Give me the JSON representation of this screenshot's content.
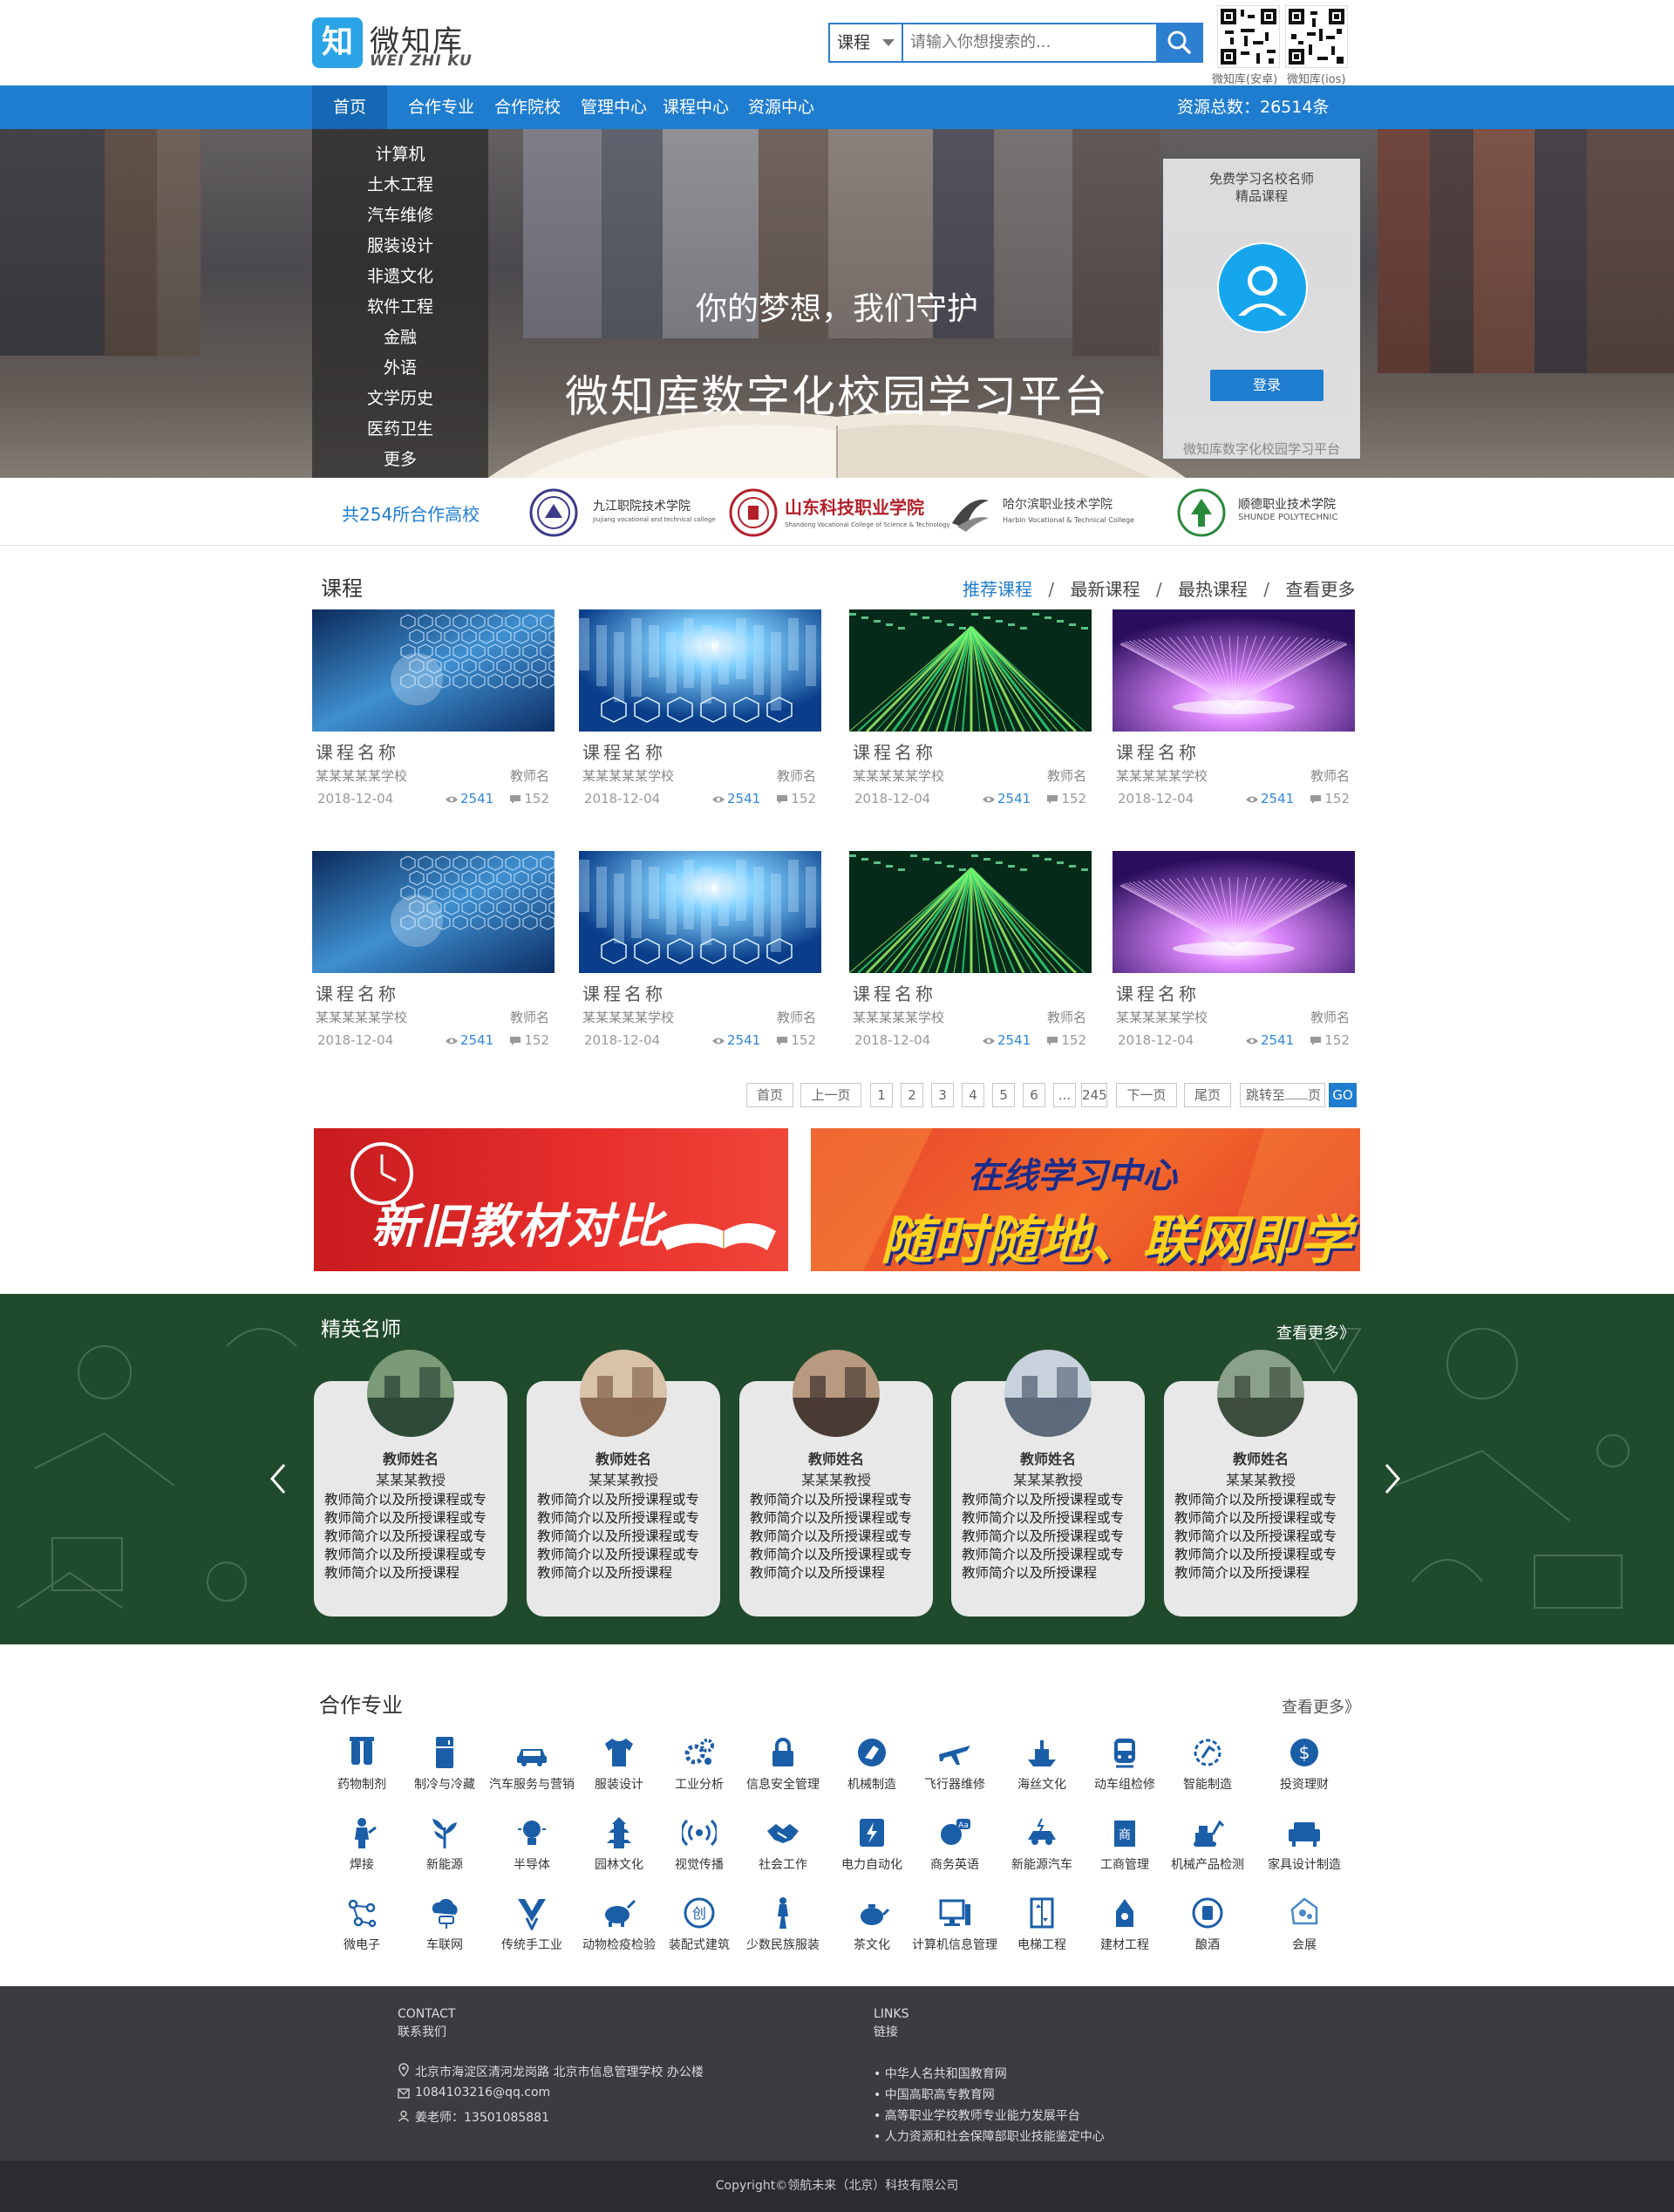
{
  "header": {
    "logo_glyph": "知",
    "logo_cn": "微知库",
    "logo_en": "WEI ZHI KU",
    "search_category": "课程",
    "search_placeholder": "请输入你想搜索的...",
    "qr_android_label": "微知库(安卓)",
    "qr_ios_label": "微知库(ios)"
  },
  "nav": {
    "items": [
      "首页",
      "合作专业",
      "合作院校",
      "管理中心",
      "课程中心",
      "资源中心"
    ],
    "resource_total": "资源总数：26514条"
  },
  "banner": {
    "categories": [
      "计算机",
      "土木工程",
      "汽车维修",
      "服装设计",
      "非遗文化",
      "软件工程",
      "金融",
      "外语",
      "文学历史",
      "医药卫生",
      "更多"
    ],
    "slogan_small": "你的梦想，我们守护",
    "slogan_big": "微知库数字化校园学习平台",
    "login_card": {
      "title_line1": "免费学习名校名师",
      "title_line2": "精品课程",
      "login_button": "登录",
      "footer": "微知库数字化校园学习平台"
    }
  },
  "partners": {
    "count_text": "共254所合作高校",
    "schools": [
      {
        "name": "九江职院技术学院",
        "en": "Jiujiang vocational and technical college"
      },
      {
        "name": "山东科技职业学院",
        "en": "Shandong Vocational College of Science & Technology"
      },
      {
        "name": "哈尔滨职业技术学院",
        "en": "Harbin Vocational & Technical College"
      },
      {
        "name": "顺德职业技术学院",
        "en": "SHUNDE POLYTECHNIC"
      }
    ]
  },
  "courses": {
    "title": "课程",
    "tabs": [
      "推荐课程",
      "最新课程",
      "最热课程",
      "查看更多"
    ],
    "separator": "/",
    "items": [
      {
        "name": "课程名称",
        "school": "某某某某某学校",
        "teacher": "教师名",
        "date": "2018-12-04",
        "views": "2541",
        "comments": "152",
        "img": "hex-blue"
      },
      {
        "name": "课程名称",
        "school": "某某某某某学校",
        "teacher": "教师名",
        "date": "2018-12-04",
        "views": "2541",
        "comments": "152",
        "img": "light-blue"
      },
      {
        "name": "课程名称",
        "school": "某某某某某学校",
        "teacher": "教师名",
        "date": "2018-12-04",
        "views": "2541",
        "comments": "152",
        "img": "green-tech"
      },
      {
        "name": "课程名称",
        "school": "某某某某某学校",
        "teacher": "教师名",
        "date": "2018-12-04",
        "views": "2541",
        "comments": "152",
        "img": "purple-rays"
      },
      {
        "name": "课程名称",
        "school": "某某某某某学校",
        "teacher": "教师名",
        "date": "2018-12-04",
        "views": "2541",
        "comments": "152",
        "img": "hex-blue"
      },
      {
        "name": "课程名称",
        "school": "某某某某某学校",
        "teacher": "教师名",
        "date": "2018-12-04",
        "views": "2541",
        "comments": "152",
        "img": "light-blue"
      },
      {
        "name": "课程名称",
        "school": "某某某某某学校",
        "teacher": "教师名",
        "date": "2018-12-04",
        "views": "2541",
        "comments": "152",
        "img": "green-tech"
      },
      {
        "name": "课程名称",
        "school": "某某某某某学校",
        "teacher": "教师名",
        "date": "2018-12-04",
        "views": "2541",
        "comments": "152",
        "img": "purple-rays"
      }
    ]
  },
  "pagination": {
    "first": "首页",
    "prev": "上一页",
    "pages": [
      "1",
      "2",
      "3",
      "4",
      "5",
      "6",
      "...",
      "245"
    ],
    "next": "下一页",
    "last": "尾页",
    "jump_prefix": "跳转至",
    "jump_suffix": "页",
    "go": "GO"
  },
  "promos": {
    "left": "新旧教材对比",
    "right_top": "在线学习中心",
    "right_bottom": "随时随地、联网即学"
  },
  "teachers": {
    "title": "精英名师",
    "more": "查看更多》",
    "items": [
      {
        "name": "教师姓名",
        "title": "某某某教授",
        "desc": "教师简介以及所授课程或专教师简介以及所授课程或专教师简介以及所授课程或专教师简介以及所授课程或专教师简介以及所授课程"
      },
      {
        "name": "教师姓名",
        "title": "某某某教授",
        "desc": "教师简介以及所授课程或专教师简介以及所授课程或专教师简介以及所授课程或专教师简介以及所授课程或专教师简介以及所授课程"
      },
      {
        "name": "教师姓名",
        "title": "某某某教授",
        "desc": "教师简介以及所授课程或专教师简介以及所授课程或专教师简介以及所授课程或专教师简介以及所授课程或专教师简介以及所授课程"
      },
      {
        "name": "教师姓名",
        "title": "某某某教授",
        "desc": "教师简介以及所授课程或专教师简介以及所授课程或专教师简介以及所授课程或专教师简介以及所授课程或专教师简介以及所授课程"
      },
      {
        "name": "教师姓名",
        "title": "某某某教授",
        "desc": "教师简介以及所授课程或专教师简介以及所授课程或专教师简介以及所授课程或专教师简介以及所授课程或专教师简介以及所授课程"
      }
    ]
  },
  "majors": {
    "title": "合作专业",
    "more": "查看更多》",
    "items": [
      {
        "label": "药物制剂",
        "icon": "pharmacy-icon"
      },
      {
        "label": "制冷与冷藏",
        "icon": "fridge-icon"
      },
      {
        "label": "汽车服务与营销",
        "icon": "car-icon"
      },
      {
        "label": "服装设计",
        "icon": "shirt-icon"
      },
      {
        "label": "工业分析",
        "icon": "gears-icon"
      },
      {
        "label": "信息安全管理",
        "icon": "lock-icon"
      },
      {
        "label": "机械制造",
        "icon": "machine-icon"
      },
      {
        "label": "飞行器维修",
        "icon": "plane-icon"
      },
      {
        "label": "海丝文化",
        "icon": "ship-icon"
      },
      {
        "label": "动车组检修",
        "icon": "train-icon"
      },
      {
        "label": "智能制造",
        "icon": "robot-arm-icon"
      },
      {
        "label": "投资理财",
        "icon": "dollar-icon"
      },
      {
        "label": "焊接",
        "icon": "welder-icon"
      },
      {
        "label": "新能源",
        "icon": "leaf-icon"
      },
      {
        "label": "半导体",
        "icon": "bulb-icon"
      },
      {
        "label": "园林文化",
        "icon": "pagoda-icon"
      },
      {
        "label": "视觉传播",
        "icon": "broadcast-icon"
      },
      {
        "label": "社会工作",
        "icon": "handshake-icon"
      },
      {
        "label": "电力自动化",
        "icon": "power-icon"
      },
      {
        "label": "商务英语",
        "icon": "english-icon"
      },
      {
        "label": "新能源汽车",
        "icon": "ev-car-icon"
      },
      {
        "label": "工商管理",
        "icon": "business-icon"
      },
      {
        "label": "机械产品检测",
        "icon": "excavator-icon"
      },
      {
        "label": "家具设计制造",
        "icon": "sofa-icon"
      },
      {
        "label": "微电子",
        "icon": "circuit-icon"
      },
      {
        "label": "车联网",
        "icon": "cloud-car-icon"
      },
      {
        "label": "传统手工业",
        "icon": "craft-icon"
      },
      {
        "label": "动物检疫检验",
        "icon": "pig-icon"
      },
      {
        "label": "装配式建筑",
        "icon": "building-icon"
      },
      {
        "label": "少数民族服装",
        "icon": "costume-icon"
      },
      {
        "label": "茶文化",
        "icon": "teapot-icon"
      },
      {
        "label": "计算机信息管理",
        "icon": "computer-icon"
      },
      {
        "label": "电梯工程",
        "icon": "elevator-icon"
      },
      {
        "label": "建材工程",
        "icon": "material-icon"
      },
      {
        "label": "酿酒",
        "icon": "brew-icon"
      },
      {
        "label": "会展",
        "icon": "exhibition-icon"
      }
    ]
  },
  "footer": {
    "contact_en": "CONTACT",
    "contact_cn": "联系我们",
    "address": "北京市海淀区清河龙岗路 北京市信息管理学校 办公楼",
    "email": "1084103216@qq.com",
    "phone": "姜老师：13501085881",
    "links_en": "LINKS",
    "links_cn": "链接",
    "links": [
      "中华人名共和国教育网",
      "中国高职高专教育网",
      "高等职业学校教师专业能力发展平台",
      "人力资源和社会保障部职业技能鉴定中心"
    ],
    "copyright": "Copyright©领航未来（北京）科技有限公司"
  },
  "colors": {
    "primary": "#1f7dcf",
    "link_blue": "#2f86d6",
    "dark_footer": "#3a3c40",
    "chalkboard": "#1f4a2c",
    "icon_blue": "#1b5ea8"
  }
}
